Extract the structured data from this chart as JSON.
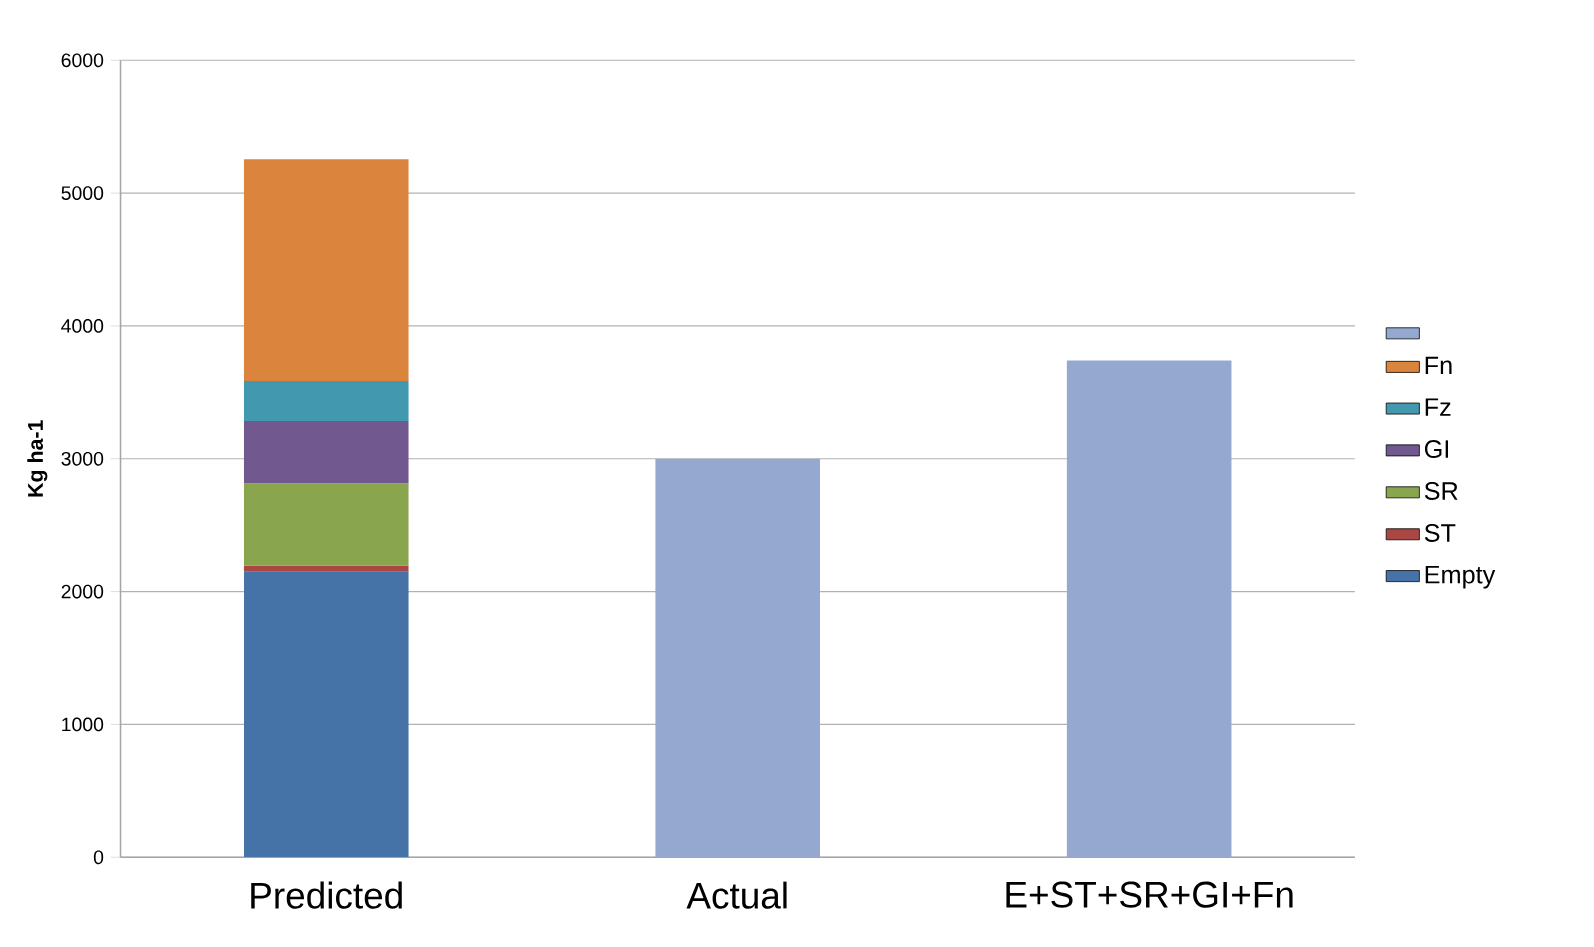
{
  "chart_data": {
    "type": "bar",
    "ylabel": "Kg ha-1",
    "categories": [
      "Predicted",
      "Actual",
      "E+ST+SR+GI+Fn"
    ],
    "stacked": true,
    "series": [
      {
        "name": "Empty",
        "color": "#4573a7",
        "values": [
          2150,
          null,
          null
        ]
      },
      {
        "name": "ST",
        "color": "#aa4643",
        "values": [
          45,
          null,
          null
        ]
      },
      {
        "name": "SR",
        "color": "#89a54e",
        "values": [
          620,
          null,
          null
        ]
      },
      {
        "name": "GI",
        "color": "#71588f",
        "values": [
          470,
          null,
          null
        ]
      },
      {
        "name": "Fz",
        "color": "#4198af",
        "values": [
          300,
          null,
          null
        ]
      },
      {
        "name": "Fn",
        "color": "#db843d",
        "values": [
          1670,
          null,
          null
        ]
      },
      {
        "color": "#95a9d0",
        "values": [
          null,
          3000,
          3740
        ]
      }
    ],
    "ylim": [
      0,
      6000
    ],
    "yticks": [
      0,
      1000,
      2000,
      3000,
      4000,
      5000,
      6000
    ],
    "grid": "y",
    "legend": "right"
  }
}
